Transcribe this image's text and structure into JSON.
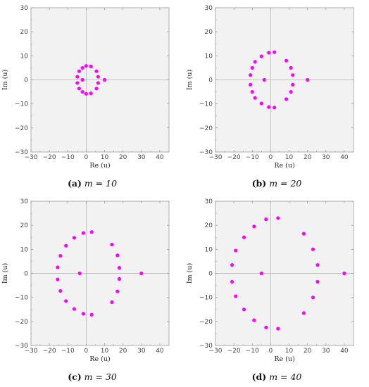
{
  "colors": {
    "point": "#ff00ff",
    "plot_background": "#f2f2f2",
    "frame": "#9a9a9a",
    "axis_line": "#b5b5b5"
  },
  "chart_data": [
    {
      "type": "scatter",
      "caption": {
        "tag": "(a)",
        "text": "m = 10"
      },
      "xlabel": "Re (u)",
      "ylabel": "Im (u)",
      "xlim": [
        -30,
        45
      ],
      "ylim": [
        -30,
        30
      ],
      "xticks": [
        -30,
        -20,
        -10,
        0,
        10,
        20,
        30,
        40
      ],
      "yticks": [
        -30,
        -20,
        -10,
        0,
        10,
        20,
        30
      ],
      "xtick_labels": [
        "−30",
        "−20",
        "−10",
        "0",
        "10",
        "20",
        "30",
        "40"
      ],
      "ytick_labels": [
        "−30",
        "−20",
        "−10",
        "0",
        "10",
        "20",
        "30"
      ],
      "grid": false,
      "series": [
        {
          "points": [
            [
              10,
              0
            ],
            [
              -2,
              0
            ],
            [
              6.5,
              1.3
            ],
            [
              6.5,
              -1.3
            ],
            [
              5.6,
              3.6
            ],
            [
              5.6,
              -3.6
            ],
            [
              2.6,
              5.6
            ],
            [
              2.6,
              -5.6
            ],
            [
              0,
              5.8
            ],
            [
              0,
              -5.8
            ],
            [
              -2,
              5.0
            ],
            [
              -2,
              -5.0
            ],
            [
              -3.8,
              3.6
            ],
            [
              -3.8,
              -3.6
            ],
            [
              -4.8,
              1.3
            ],
            [
              -4.8,
              -1.3
            ]
          ]
        }
      ]
    },
    {
      "type": "scatter",
      "caption": {
        "tag": "(b)",
        "text": "m = 20"
      },
      "xlabel": "Re (u)",
      "ylabel": "Im (u)",
      "xlim": [
        -30,
        45
      ],
      "ylim": [
        -30,
        30
      ],
      "xticks": [
        -30,
        -20,
        -10,
        0,
        10,
        20,
        30,
        40
      ],
      "yticks": [
        -30,
        -20,
        -10,
        0,
        10,
        20,
        30
      ],
      "xtick_labels": [
        "−30",
        "−20",
        "−10",
        "0",
        "10",
        "20",
        "30",
        "40"
      ],
      "ytick_labels": [
        "−30",
        "−20",
        "−10",
        "0",
        "10",
        "20",
        "30"
      ],
      "grid": false,
      "series": [
        {
          "points": [
            [
              20,
              0
            ],
            [
              -3.5,
              0
            ],
            [
              12,
              2
            ],
            [
              12,
              -2
            ],
            [
              11,
              5
            ],
            [
              11,
              -5
            ],
            [
              8.5,
              8
            ],
            [
              8.5,
              -8
            ],
            [
              2,
              11.5
            ],
            [
              2,
              -11.5
            ],
            [
              -1,
              11.3
            ],
            [
              -1,
              -11.3
            ],
            [
              -5,
              9.8
            ],
            [
              -5,
              -9.8
            ],
            [
              -8.5,
              7.5
            ],
            [
              -8.5,
              -7.5
            ],
            [
              -10,
              5
            ],
            [
              -10,
              -5
            ],
            [
              -11,
              2
            ],
            [
              -11,
              -2
            ]
          ]
        }
      ]
    },
    {
      "type": "scatter",
      "caption": {
        "tag": "(c)",
        "text": "m = 30"
      },
      "xlabel": "Re (u)",
      "ylabel": "Im (u)",
      "xlim": [
        -30,
        45
      ],
      "ylim": [
        -30,
        30
      ],
      "xticks": [
        -30,
        -20,
        -10,
        0,
        10,
        20,
        30,
        40
      ],
      "yticks": [
        -30,
        -20,
        -10,
        0,
        10,
        20,
        30
      ],
      "xtick_labels": [
        "−30",
        "−20",
        "−10",
        "0",
        "10",
        "20",
        "30",
        "40"
      ],
      "ytick_labels": [
        "−30",
        "−20",
        "−10",
        "0",
        "10",
        "20",
        "30"
      ],
      "grid": false,
      "series": [
        {
          "points": [
            [
              30,
              0
            ],
            [
              -3.5,
              0
            ],
            [
              18,
              2.3
            ],
            [
              18,
              -2.3
            ],
            [
              17,
              7.5
            ],
            [
              17,
              -7.5
            ],
            [
              14,
              12
            ],
            [
              14,
              -12
            ],
            [
              3,
              17.2
            ],
            [
              3,
              -17.2
            ],
            [
              -1.5,
              16.8
            ],
            [
              -1.5,
              -16.8
            ],
            [
              -6.5,
              14.8
            ],
            [
              -6.5,
              -14.8
            ],
            [
              -11,
              11.5
            ],
            [
              -11,
              -11.5
            ],
            [
              -14,
              7.3
            ],
            [
              -14,
              -7.3
            ],
            [
              -15.5,
              2.5
            ],
            [
              -15.5,
              -2.5
            ]
          ]
        }
      ]
    },
    {
      "type": "scatter",
      "caption": {
        "tag": "(d)",
        "text": "m = 40"
      },
      "xlabel": "Re (u)",
      "ylabel": "Im (u)",
      "xlim": [
        -30,
        45
      ],
      "ylim": [
        -30,
        30
      ],
      "xticks": [
        -30,
        -20,
        -10,
        0,
        10,
        20,
        30,
        40
      ],
      "yticks": [
        -30,
        -20,
        -10,
        0,
        10,
        20,
        30
      ],
      "xtick_labels": [
        "−30",
        "−20",
        "−10",
        "0",
        "10",
        "20",
        "30",
        "40"
      ],
      "ytick_labels": [
        "−30",
        "−20",
        "−10",
        "0",
        "10",
        "20",
        "30"
      ],
      "grid": false,
      "series": [
        {
          "points": [
            [
              40,
              0
            ],
            [
              -5,
              0
            ],
            [
              25.5,
              3.5
            ],
            [
              25.5,
              -3.5
            ],
            [
              23,
              10
            ],
            [
              23,
              -10
            ],
            [
              18,
              16.5
            ],
            [
              18,
              -16.5
            ],
            [
              4,
              23
            ],
            [
              4,
              -23
            ],
            [
              -2.5,
              22.5
            ],
            [
              -2.5,
              -22.5
            ],
            [
              -9,
              19.5
            ],
            [
              -9,
              -19.5
            ],
            [
              -14.5,
              15
            ],
            [
              -14.5,
              -15
            ],
            [
              -19,
              9.5
            ],
            [
              -19,
              -9.5
            ],
            [
              -21,
              3.5
            ],
            [
              -21,
              -3.5
            ]
          ]
        }
      ]
    }
  ]
}
